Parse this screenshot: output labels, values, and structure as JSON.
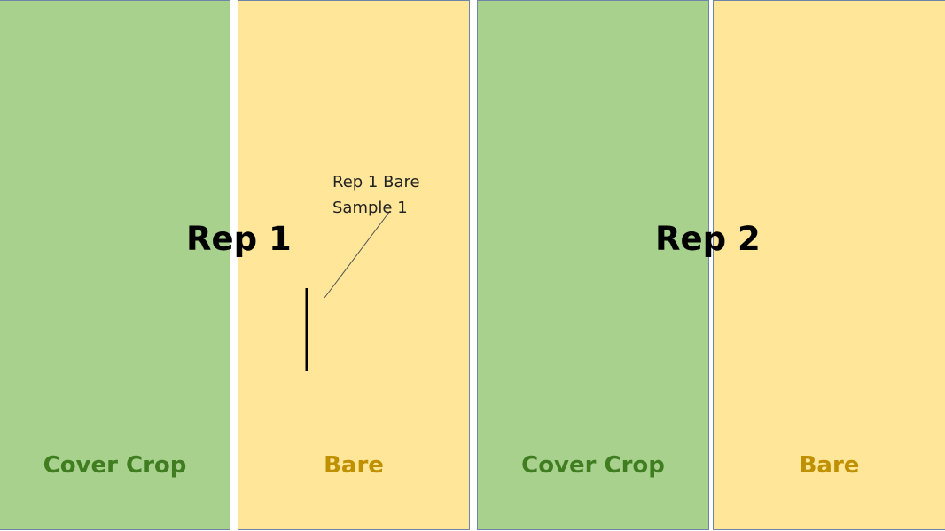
{
  "plots": [
    {
      "label": "Cover Crop",
      "treatment": "cover-crop",
      "fill": "#a9d18e",
      "label_color": "#3f7d20"
    },
    {
      "label": "Bare",
      "treatment": "bare",
      "fill": "#ffe699",
      "label_color": "#bf9000"
    },
    {
      "label": "Cover Crop",
      "treatment": "cover-crop",
      "fill": "#a9d18e",
      "label_color": "#3f7d20"
    },
    {
      "label": "Bare",
      "treatment": "bare",
      "fill": "#ffe699",
      "label_color": "#bf9000"
    }
  ],
  "reps": [
    {
      "label": "Rep 1"
    },
    {
      "label": "Rep 2"
    }
  ],
  "callout": {
    "line1": "Rep 1 Bare",
    "line2": "Sample 1"
  },
  "colors": {
    "border": "#6f84a7",
    "sample_marker": "#000000",
    "leader_line": "#555555"
  }
}
